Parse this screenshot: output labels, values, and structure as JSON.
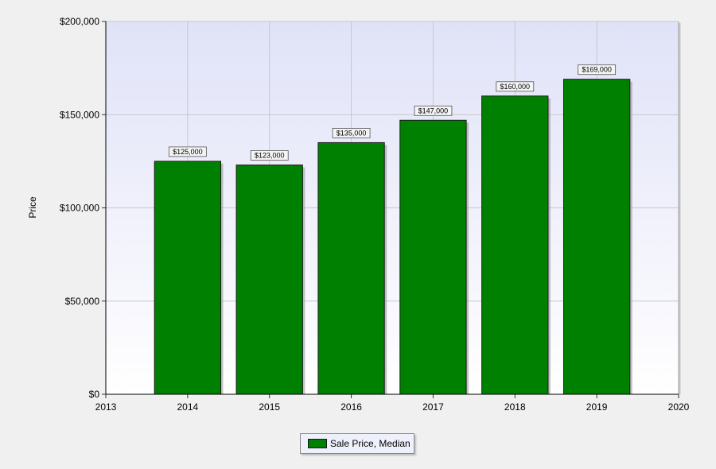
{
  "chart_data": {
    "type": "bar",
    "ylabel": "Price",
    "ylim": [
      0,
      200000
    ],
    "y_ticks": [
      {
        "value": 0,
        "label": "$0"
      },
      {
        "value": 50000,
        "label": "$50,000"
      },
      {
        "value": 100000,
        "label": "$100,000"
      },
      {
        "value": 150000,
        "label": "$150,000"
      },
      {
        "value": 200000,
        "label": "$200,000"
      }
    ],
    "xlim": [
      2013,
      2020
    ],
    "x_ticks": [
      "2013",
      "2014",
      "2015",
      "2016",
      "2017",
      "2018",
      "2019",
      "2020"
    ],
    "x": [
      2014,
      2015,
      2016,
      2017,
      2018,
      2019
    ],
    "series": [
      {
        "name": "Sale Price, Median",
        "values": [
          125000,
          123000,
          135000,
          147000,
          160000,
          169000
        ],
        "data_labels": [
          "$125,000",
          "$123,000",
          "$135,000",
          "$147,000",
          "$160,000",
          "$169,000"
        ]
      }
    ],
    "grid": true,
    "legend_position": "bottom-center",
    "colors": {
      "bar": "#008000",
      "bar_border": "#1a1a1a",
      "plot_top": "#e0e2f8",
      "plot_bottom": "#ffffff",
      "grid": "#c8c8c8",
      "background": "#f0f0f0"
    }
  }
}
